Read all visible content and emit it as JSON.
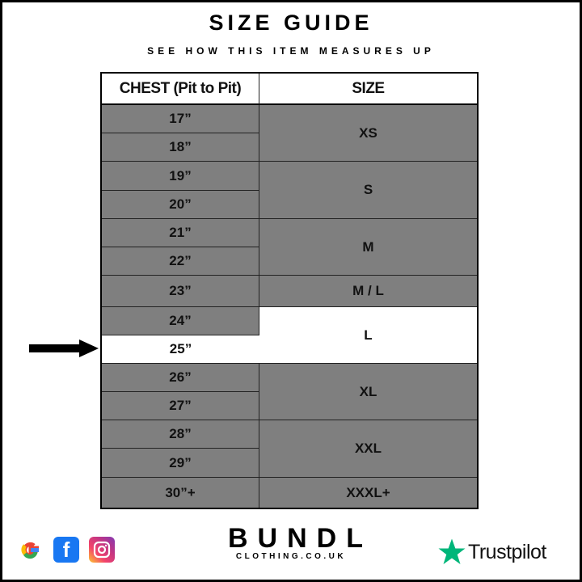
{
  "title": "SIZE GUIDE",
  "subtitle": "SEE HOW THIS ITEM MEASURES UP",
  "headers": {
    "chest": "CHEST (Pit to Pit)",
    "size": "SIZE"
  },
  "chest": [
    "17”",
    "18”",
    "19”",
    "20”",
    "21”",
    "22”",
    "23”",
    "24”",
    "25”",
    "26”",
    "27”",
    "28”",
    "29”",
    "30”+"
  ],
  "sizes": [
    "XS",
    "S",
    "M",
    "M / L",
    "L",
    "XL",
    "XXL",
    "XXXL+"
  ],
  "highlighted": {
    "chest": "25”",
    "size": "L"
  },
  "colors": {
    "cell": "#7f7f7f",
    "highlight": "#ffffff",
    "trustpilot": "#00b67a"
  },
  "footer": {
    "brand": "BUNDL",
    "domain": "CLOTHING.CO.UK",
    "trustpilot": "Trustpilot",
    "social_icons": [
      "google-icon",
      "facebook-icon",
      "instagram-icon"
    ]
  }
}
